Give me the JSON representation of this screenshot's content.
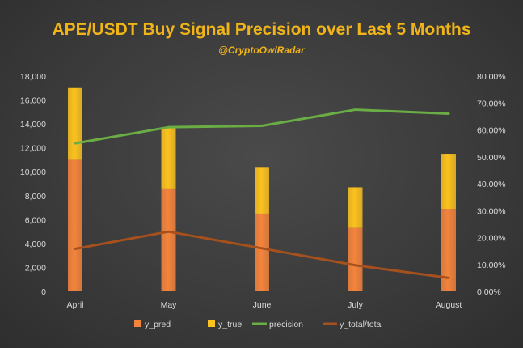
{
  "chart_data": {
    "type": "bar",
    "title": "APE/USDT Buy Signal Precision over Last 5 Months",
    "subtitle": "@CryptoOwlRadar",
    "categories": [
      "April",
      "May",
      "June",
      "July",
      "August"
    ],
    "stacked": true,
    "y_left": {
      "ylim": [
        0,
        18000
      ],
      "ticks": [
        "0",
        "2,000",
        "4,000",
        "6,000",
        "8,000",
        "10,000",
        "12,000",
        "14,000",
        "16,000",
        "18,000"
      ]
    },
    "y_right": {
      "ylim": [
        0,
        0.8
      ],
      "ticks": [
        "0.00%",
        "10.00%",
        "20.00%",
        "30.00%",
        "40.00%",
        "50.00%",
        "60.00%",
        "70.00%",
        "80.00%"
      ]
    },
    "series": [
      {
        "name": "y_pred",
        "type": "bar",
        "axis": "left",
        "values": [
          11000,
          8600,
          6500,
          5300,
          6900
        ],
        "color": "#f4843c"
      },
      {
        "name": "y_true",
        "type": "bar",
        "axis": "left",
        "values": [
          6000,
          5100,
          3900,
          3400,
          4600
        ],
        "color": "#fcc21e"
      },
      {
        "name": "precision",
        "type": "line",
        "axis": "right",
        "values": [
          0.55,
          0.61,
          0.615,
          0.675,
          0.66
        ],
        "color": "#6aad45"
      },
      {
        "name": "y_total/total",
        "type": "line",
        "axis": "right",
        "values": [
          0.158,
          0.222,
          0.16,
          0.097,
          0.05
        ],
        "color": "#a5501d"
      }
    ],
    "legend_position": "bottom",
    "grid": false
  }
}
